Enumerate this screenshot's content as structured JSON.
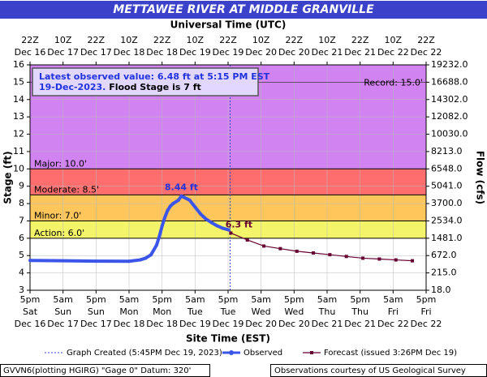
{
  "chart_data": {
    "type": "line",
    "title": "METTAWEE RIVER AT MIDDLE GRANVILLE",
    "top_axis_label": "Universal Time (UTC)",
    "x_label": "Site Time (EST)",
    "y_label": "Stage (ft)",
    "y2_label": "Flow (cfs)",
    "xlim": [
      "2023-12-16T17:00",
      "2023-12-22T17:00"
    ],
    "xticks": [
      {
        "value": "2023-12-16T17:00",
        "label": [
          "5pm",
          "Sat",
          "Dec 16"
        ]
      },
      {
        "value": "2023-12-17T05:00",
        "label": [
          "5am",
          "Sun",
          "Dec 17"
        ]
      },
      {
        "value": "2023-12-17T17:00",
        "label": [
          "5pm",
          "Sun",
          "Dec 17"
        ]
      },
      {
        "value": "2023-12-18T05:00",
        "label": [
          "5am",
          "Mon",
          "Dec 18"
        ]
      },
      {
        "value": "2023-12-18T17:00",
        "label": [
          "5pm",
          "Mon",
          "Dec 18"
        ]
      },
      {
        "value": "2023-12-19T05:00",
        "label": [
          "5am",
          "Tue",
          "Dec 19"
        ]
      },
      {
        "value": "2023-12-19T17:00",
        "label": [
          "5pm",
          "Tue",
          "Dec 19"
        ]
      },
      {
        "value": "2023-12-20T05:00",
        "label": [
          "5am",
          "Wed",
          "Dec 20"
        ]
      },
      {
        "value": "2023-12-20T17:00",
        "label": [
          "5pm",
          "Wed",
          "Dec 20"
        ]
      },
      {
        "value": "2023-12-21T05:00",
        "label": [
          "5am",
          "Thu",
          "Dec 21"
        ]
      },
      {
        "value": "2023-12-21T17:00",
        "label": [
          "5pm",
          "Thu",
          "Dec 21"
        ]
      },
      {
        "value": "2023-12-22T05:00",
        "label": [
          "5am",
          "Fri",
          "Dec 22"
        ]
      },
      {
        "value": "2023-12-22T17:00",
        "label": [
          "5pm",
          "Fri",
          "Dec 22"
        ]
      }
    ],
    "x2ticks": [
      {
        "value": "2023-12-16T17:00",
        "label": [
          "22Z",
          "Dec 16"
        ]
      },
      {
        "value": "2023-12-17T05:00",
        "label": [
          "10Z",
          "Dec 17"
        ]
      },
      {
        "value": "2023-12-17T17:00",
        "label": [
          "22Z",
          "Dec 17"
        ]
      },
      {
        "value": "2023-12-18T05:00",
        "label": [
          "10Z",
          "Dec 18"
        ]
      },
      {
        "value": "2023-12-18T17:00",
        "label": [
          "22Z",
          "Dec 18"
        ]
      },
      {
        "value": "2023-12-19T05:00",
        "label": [
          "10Z",
          "Dec 19"
        ]
      },
      {
        "value": "2023-12-19T17:00",
        "label": [
          "22Z",
          "Dec 19"
        ]
      },
      {
        "value": "2023-12-20T05:00",
        "label": [
          "10Z",
          "Dec 20"
        ]
      },
      {
        "value": "2023-12-20T17:00",
        "label": [
          "22Z",
          "Dec 20"
        ]
      },
      {
        "value": "2023-12-21T05:00",
        "label": [
          "10Z",
          "Dec 21"
        ]
      },
      {
        "value": "2023-12-21T17:00",
        "label": [
          "22Z",
          "Dec 21"
        ]
      },
      {
        "value": "2023-12-22T05:00",
        "label": [
          "10Z",
          "Dec 22"
        ]
      },
      {
        "value": "2023-12-22T17:00",
        "label": [
          "22Z",
          "Dec 22"
        ]
      }
    ],
    "ylim": [
      3,
      16
    ],
    "yticks": [
      3,
      4,
      5,
      6,
      7,
      8,
      9,
      10,
      11,
      12,
      13,
      14,
      15,
      16
    ],
    "y2ticks": [
      {
        "value": 18,
        "label": "18.0"
      },
      {
        "value": 215,
        "label": "215.0"
      },
      {
        "value": 672,
        "label": "672.0"
      },
      {
        "value": 1481,
        "label": "1481.0"
      },
      {
        "value": 2534,
        "label": "2534.0"
      },
      {
        "value": 3700,
        "label": "3700.0"
      },
      {
        "value": 5041,
        "label": "5041.0"
      },
      {
        "value": 6548,
        "label": "6548.0"
      },
      {
        "value": 8213,
        "label": "8213.0"
      },
      {
        "value": 10030,
        "label": "10030.0"
      },
      {
        "value": 12082,
        "label": "12082.0"
      },
      {
        "value": 14302,
        "label": "14302.0"
      },
      {
        "value": 16688,
        "label": "16688.0"
      },
      {
        "value": 19232,
        "label": "19232.0"
      }
    ],
    "grid": true,
    "flood_levels": [
      {
        "value": 6.0,
        "label": "Action: 6.0'",
        "color": "#f4f46a"
      },
      {
        "value": 7.0,
        "label": "Minor: 7.0'",
        "color": "#ffc65c"
      },
      {
        "value": 8.5,
        "label": "Moderate: 8.5'",
        "color": "#ff6e6e"
      },
      {
        "value": 10.0,
        "label": "Major: 10.0'",
        "color": "#d283f2"
      }
    ],
    "record": {
      "value": 15.0,
      "label": "Record: 15.0'"
    },
    "info": [
      "Latest observed value: 6.48 ft at 5:15 PM EST",
      "19-Dec-2023.",
      "Flood Stage is 7 ft"
    ],
    "graph_created": {
      "x": "2023-12-19T17:45",
      "label": "Graph Created (5:45PM Dec 19, 2023)"
    },
    "series": [
      {
        "name": "Observed",
        "color": "#3a55e8",
        "x": [
          "2023-12-16T17:00",
          "2023-12-17T05:00",
          "2023-12-17T17:00",
          "2023-12-18T05:00",
          "2023-12-18T09:00",
          "2023-12-18T11:00",
          "2023-12-18T13:00",
          "2023-12-18T15:00",
          "2023-12-18T16:00",
          "2023-12-18T17:00",
          "2023-12-18T18:00",
          "2023-12-18T19:00",
          "2023-12-18T20:00",
          "2023-12-18T21:00",
          "2023-12-18T23:00",
          "2023-12-19T00:00",
          "2023-12-19T03:00",
          "2023-12-19T05:00",
          "2023-12-19T07:00",
          "2023-12-19T09:00",
          "2023-12-19T11:00",
          "2023-12-19T13:00",
          "2023-12-19T15:00",
          "2023-12-19T17:15"
        ],
        "values": [
          4.72,
          4.7,
          4.68,
          4.67,
          4.75,
          4.85,
          5.05,
          5.6,
          6.1,
          6.7,
          7.2,
          7.6,
          7.85,
          8.0,
          8.2,
          8.44,
          8.2,
          7.8,
          7.4,
          7.1,
          6.9,
          6.72,
          6.58,
          6.48
        ],
        "value_labels": [
          null,
          null,
          null,
          null,
          null,
          null,
          null,
          null,
          null,
          null,
          null,
          null,
          null,
          null,
          null,
          "8.44 ft",
          null,
          null,
          null,
          null,
          null,
          null,
          null,
          null
        ]
      },
      {
        "name": "Forecast (issued 3:26PM Dec 19)",
        "color": "#660033",
        "x": [
          "2023-12-19T18:00",
          "2023-12-20T00:00",
          "2023-12-20T06:00",
          "2023-12-20T12:00",
          "2023-12-20T18:00",
          "2023-12-21T00:00",
          "2023-12-21T06:00",
          "2023-12-21T12:00",
          "2023-12-21T18:00",
          "2023-12-22T00:00",
          "2023-12-22T06:00",
          "2023-12-22T12:00"
        ],
        "values": [
          6.3,
          5.9,
          5.55,
          5.4,
          5.25,
          5.15,
          5.05,
          4.95,
          4.85,
          4.8,
          4.75,
          4.7
        ],
        "value_labels": [
          "6.3 ft",
          null,
          null,
          null,
          null,
          null,
          null,
          null,
          null,
          null,
          null,
          null
        ]
      }
    ],
    "footer": [
      "GVVN6(plotting HGIRG) \"Gage 0\" Datum: 320'",
      "Observations courtesy of US Geological Survey"
    ]
  }
}
